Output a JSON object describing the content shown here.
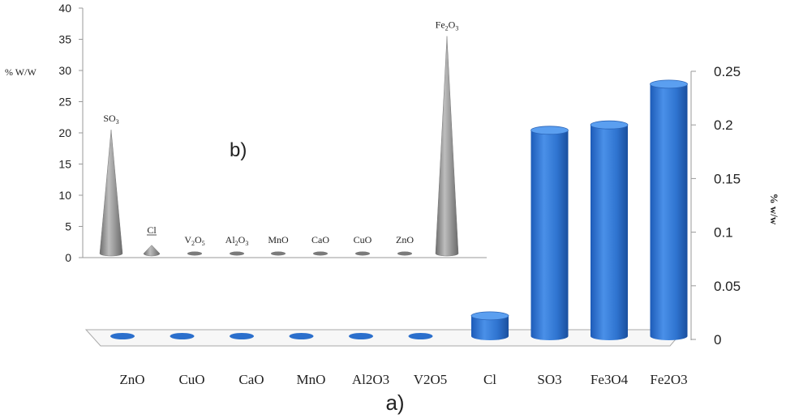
{
  "chart_data": [
    {
      "panel": "a)",
      "type": "bar",
      "categories": [
        "ZnO",
        "CuO",
        "CaO",
        "MnO",
        "Al2O3",
        "V2O5",
        "Cl",
        "SO3",
        "Fe3O4",
        "Fe2O3"
      ],
      "values": [
        0,
        0,
        0,
        0,
        0,
        0,
        0.022,
        0.195,
        0.2,
        0.238
      ],
      "xlabel": "",
      "ylabel": "% w/w",
      "ylim": [
        0,
        0.25
      ],
      "yticks": [
        "0",
        "0.05",
        "0.1",
        "0.15",
        "0.2",
        "0.25"
      ],
      "y_axis_side": "right",
      "bar_color": "#2b6fcc",
      "grid": false
    },
    {
      "panel": "b)",
      "type": "bar",
      "shape": "cone",
      "categories": [
        "SO3",
        "Cl",
        "V2O5",
        "Al2O3",
        "MnO",
        "CaO",
        "CuO",
        "ZnO",
        "Fe2O3"
      ],
      "category_labels": [
        {
          "base": "SO",
          "sub": "3",
          "tail": ""
        },
        {
          "base": "Cl",
          "sub": "",
          "tail": ""
        },
        {
          "base": "V",
          "sub": "2",
          "tail": "O",
          "sub2": "5"
        },
        {
          "base": "Al",
          "sub": "2",
          "tail": "O",
          "sub2": "3"
        },
        {
          "base": "MnO",
          "sub": "",
          "tail": ""
        },
        {
          "base": "CaO",
          "sub": "",
          "tail": ""
        },
        {
          "base": "CuO",
          "sub": "",
          "tail": ""
        },
        {
          "base": "ZnO",
          "sub": "",
          "tail": ""
        },
        {
          "base": "Fe",
          "sub": "2",
          "tail": "O",
          "sub2": "3"
        }
      ],
      "values": [
        20.5,
        2,
        0.3,
        0.3,
        0.3,
        0.3,
        0.3,
        0.3,
        35.5
      ],
      "xlabel": "",
      "ylabel": "% W/W",
      "ylim": [
        0,
        40
      ],
      "yticks": [
        "0",
        "5",
        "10",
        "15",
        "20",
        "25",
        "30",
        "35",
        "40"
      ],
      "cone_color": "#8e8e8e",
      "grid": false
    }
  ]
}
